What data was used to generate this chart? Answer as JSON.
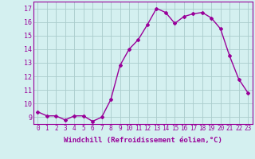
{
  "x": [
    0,
    1,
    2,
    3,
    4,
    5,
    6,
    7,
    8,
    9,
    10,
    11,
    12,
    13,
    14,
    15,
    16,
    17,
    18,
    19,
    20,
    21,
    22,
    23
  ],
  "y": [
    9.4,
    9.1,
    9.1,
    8.8,
    9.1,
    9.1,
    8.7,
    9.0,
    10.3,
    12.8,
    14.0,
    14.7,
    15.8,
    17.0,
    16.7,
    15.9,
    16.4,
    16.6,
    16.7,
    16.3,
    15.5,
    13.5,
    11.8,
    10.8
  ],
  "line_color": "#990099",
  "marker": "D",
  "marker_size": 2.0,
  "linewidth": 1.0,
  "bg_color": "#d4f0f0",
  "grid_color": "#aacccc",
  "xlabel": "Windchill (Refroidissement éolien,°C)",
  "xlabel_fontsize": 6.5,
  "xtick_fontsize": 5.5,
  "ytick_fontsize": 6.0,
  "ylim": [
    8.5,
    17.5
  ],
  "xlim": [
    -0.5,
    23.5
  ],
  "yticks": [
    9,
    10,
    11,
    12,
    13,
    14,
    15,
    16,
    17
  ],
  "xticks": [
    0,
    1,
    2,
    3,
    4,
    5,
    6,
    7,
    8,
    9,
    10,
    11,
    12,
    13,
    14,
    15,
    16,
    17,
    18,
    19,
    20,
    21,
    22,
    23
  ]
}
